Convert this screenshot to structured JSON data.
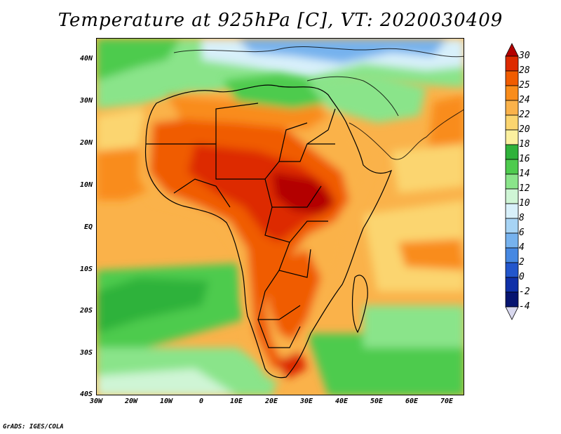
{
  "title": "Temperature at 925hPa [C], VT: 2020030409",
  "footer": "GrADS: IGES/COLA",
  "map": {
    "lon_range": [
      -30,
      75
    ],
    "lat_range": [
      -40,
      45
    ],
    "lat_labels": [
      "40N",
      "30N",
      "20N",
      "10N",
      "EQ",
      "10S",
      "20S",
      "30S",
      "40S"
    ],
    "lon_labels": [
      "30W",
      "20W",
      "10W",
      "0",
      "10E",
      "20E",
      "30E",
      "40E",
      "50E",
      "60E",
      "70E"
    ]
  },
  "colorbar": {
    "labels": [
      "30",
      "28",
      "25",
      "24",
      "22",
      "20",
      "18",
      "16",
      "14",
      "12",
      "10",
      "8",
      "6",
      "4",
      "2",
      "0",
      "-2",
      "-4"
    ],
    "colors": [
      "#b30000",
      "#dd2a00",
      "#f05c00",
      "#f98c1a",
      "#fab24a",
      "#fbd56f",
      "#fbf09f",
      "#2fb23a",
      "#4ecb4e",
      "#8ae48a",
      "#cff5d5",
      "#d8f0fa",
      "#a7d4f5",
      "#76b2ee",
      "#4688e2",
      "#2256cc",
      "#0f30a8",
      "#061470",
      "#d8d8ee"
    ]
  }
}
